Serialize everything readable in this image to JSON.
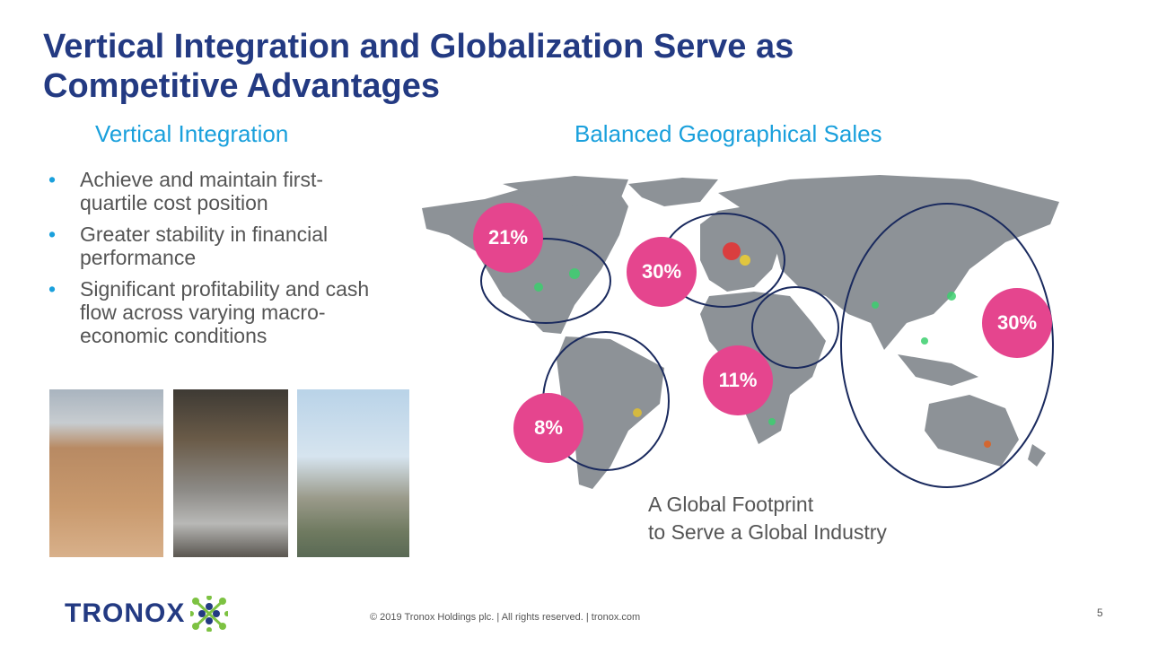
{
  "title": "Vertical Integration and Globalization Serve as Competitive Advantages",
  "left_heading": "Vertical Integration",
  "right_heading": "Balanced Geographical Sales",
  "bullets": [
    "Achieve and maintain first-quartile cost position",
    "Greater stability in financial performance",
    "Significant profitability and cash flow across varying macro-economic conditions"
  ],
  "regions": {
    "north_america": "21%",
    "europe": "30%",
    "asia_pacific": "30%",
    "middle_east_africa": "11%",
    "south_america": "8%"
  },
  "caption": {
    "line1": "A Global Footprint",
    "line2": "to Serve a Global Industry"
  },
  "footer": "© 2019 Tronox Holdings plc.  |  All rights reserved.  |  tronox.com",
  "page_number": "5",
  "logo_text": "TRONOX",
  "colors": {
    "title": "#233a82",
    "accent": "#1aa0dc",
    "badge": "#e5458e"
  }
}
